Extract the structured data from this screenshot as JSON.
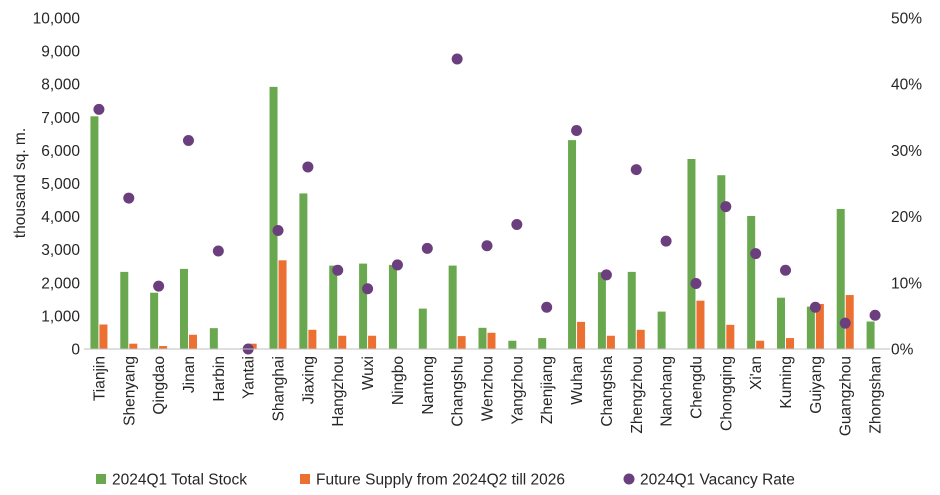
{
  "chart_data": {
    "type": "bar",
    "categories": [
      "Tianjin",
      "Shenyang",
      "Qingdao",
      "Jinan",
      "Harbin",
      "Yantai",
      "Shanghai",
      "Jiaxing",
      "Hangzhou",
      "Wuxi",
      "Ningbo",
      "Nantong",
      "Changshu",
      "Wenzhou",
      "Yangzhou",
      "Zhenjiang",
      "Wuhan",
      "Changsha",
      "Zhengzhou",
      "Nanchang",
      "Chengdu",
      "Chongqing",
      "Xi'an",
      "Kuming",
      "Guiyang",
      "Guangzhou",
      "Zhongshan"
    ],
    "series": [
      {
        "name": "2024Q1 Total Stock",
        "type": "bar",
        "axis": "left",
        "color": "#6aa84f",
        "values": [
          7030,
          2330,
          1700,
          2420,
          630,
          20,
          7920,
          4700,
          2520,
          2580,
          2540,
          1220,
          2520,
          640,
          250,
          330,
          6310,
          2320,
          2330,
          1130,
          5740,
          5250,
          4020,
          1550,
          1280,
          4230,
          830
        ]
      },
      {
        "name": "Future Supply from 2024Q2 till 2026",
        "type": "bar",
        "axis": "left",
        "color": "#ec7032",
        "values": [
          740,
          160,
          90,
          430,
          0,
          160,
          2680,
          580,
          400,
          400,
          0,
          0,
          390,
          490,
          0,
          0,
          820,
          400,
          580,
          0,
          1460,
          730,
          250,
          330,
          1360,
          1630,
          0
        ]
      },
      {
        "name": "2024Q1 Vacancy Rate",
        "type": "scatter",
        "axis": "right",
        "color": "#6b3f7d",
        "values": [
          36.2,
          22.8,
          9.5,
          31.5,
          14.8,
          0.0,
          17.9,
          27.5,
          11.9,
          9.1,
          12.7,
          15.2,
          43.8,
          15.6,
          18.8,
          6.3,
          33.0,
          11.2,
          27.1,
          16.3,
          9.9,
          21.5,
          14.4,
          11.9,
          6.3,
          3.9,
          5.1
        ]
      }
    ],
    "ylabel": "thousand sq. m.",
    "ylim": [
      0,
      10000
    ],
    "y_ticks": [
      "0",
      "1,000",
      "2,000",
      "3,000",
      "4,000",
      "5,000",
      "6,000",
      "7,000",
      "8,000",
      "9,000",
      "10,000"
    ],
    "y2lim": [
      0,
      50
    ],
    "y2_ticks": [
      "0%",
      "10%",
      "20%",
      "30%",
      "40%",
      "50%"
    ],
    "grid": false,
    "legend_position": "bottom"
  }
}
